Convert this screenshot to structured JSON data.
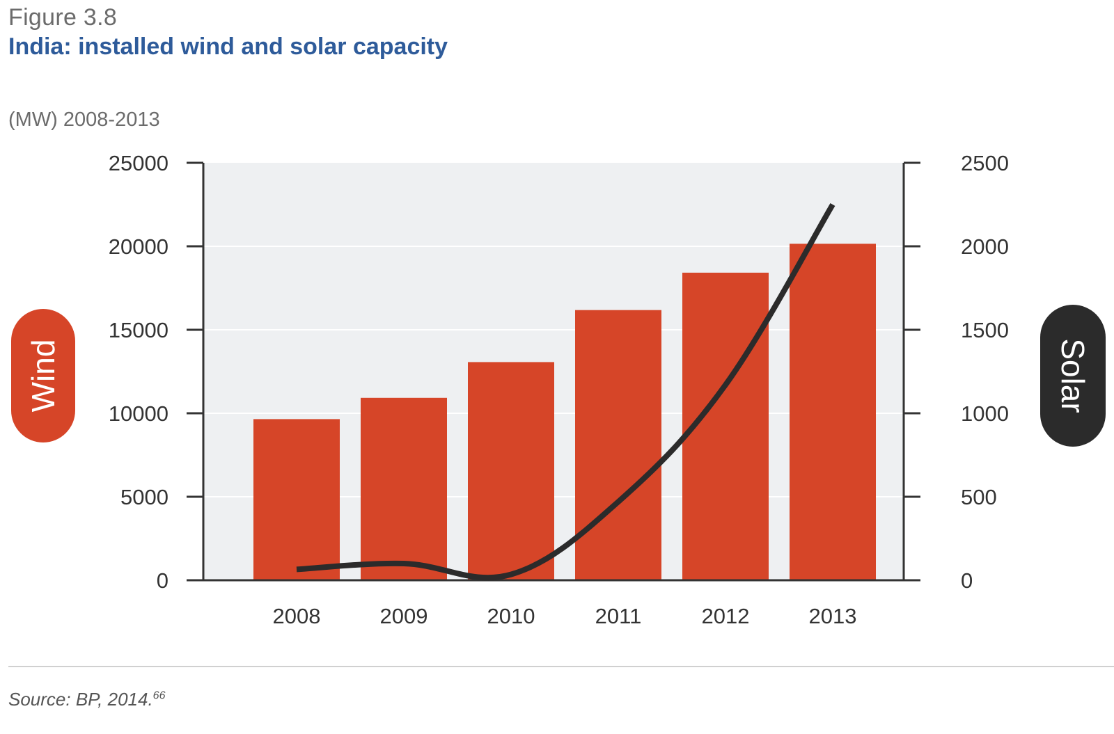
{
  "header": {
    "figure_label": "Figure 3.8",
    "title": "India: installed wind and solar capacity",
    "unit_label": "(MW) 2008-2013"
  },
  "footer": {
    "source_text": "Source: BP, 2014.",
    "source_ref": "66"
  },
  "colors": {
    "wind": "#d64528",
    "solar": "#2b2b2b",
    "plot_bg": "#eef0f2",
    "axis": "#333333",
    "tick_text": "#333333"
  },
  "chart_data": {
    "type": "bar",
    "categories": [
      "2008",
      "2009",
      "2010",
      "2011",
      "2012",
      "2013"
    ],
    "series": [
      {
        "name": "Wind",
        "type": "bar",
        "axis": "left",
        "values": [
          9650,
          10925,
          13065,
          16180,
          18420,
          20150
        ]
      },
      {
        "name": "Solar",
        "type": "line",
        "axis": "right",
        "values": [
          65,
          100,
          35,
          470,
          1170,
          2250
        ]
      }
    ],
    "y_left": {
      "label": "Wind",
      "ylim": [
        0,
        25000
      ],
      "ticks": [
        "0",
        "5000",
        "10000",
        "15000",
        "20000",
        "25000"
      ]
    },
    "y_right": {
      "label": "Solar",
      "ylim": [
        0,
        2500
      ],
      "ticks": [
        "0",
        "500",
        "1000",
        "1500",
        "2000",
        "2500"
      ]
    },
    "grid": true,
    "legend": "axis-side pill labels (left: Wind, right: Solar)"
  }
}
